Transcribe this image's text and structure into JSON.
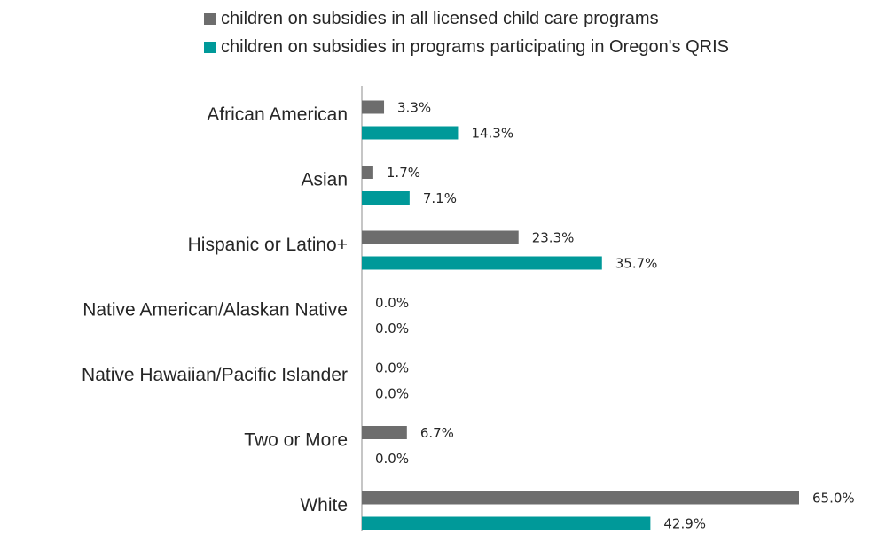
{
  "chart_data": {
    "type": "bar",
    "orientation": "horizontal",
    "categories": [
      "African American",
      "Asian",
      "Hispanic or Latino+",
      "Native American/Alaskan Native",
      "Native Hawaiian/Pacific Islander",
      "Two or More",
      "White"
    ],
    "series": [
      {
        "name": "children on subsidies in all licensed child care programs",
        "color": "#6d6d6d",
        "values": [
          3.3,
          1.7,
          23.3,
          0.0,
          0.0,
          6.7,
          65.0
        ],
        "labels": [
          "3.3%",
          "1.7%",
          "23.3%",
          "0.0%",
          "0.0%",
          "6.7%",
          "65.0%"
        ]
      },
      {
        "name": "children on subsidies in programs participating in Oregon's QRIS",
        "color": "#009999",
        "values": [
          14.3,
          7.1,
          35.7,
          0.0,
          0.0,
          0.0,
          42.9
        ],
        "labels": [
          "14.3%",
          "7.1%",
          "35.7%",
          "0.0%",
          "0.0%",
          "0.0%",
          "42.9%"
        ]
      }
    ],
    "xlim": [
      0,
      65
    ],
    "legend_position": "top",
    "grid": false
  }
}
